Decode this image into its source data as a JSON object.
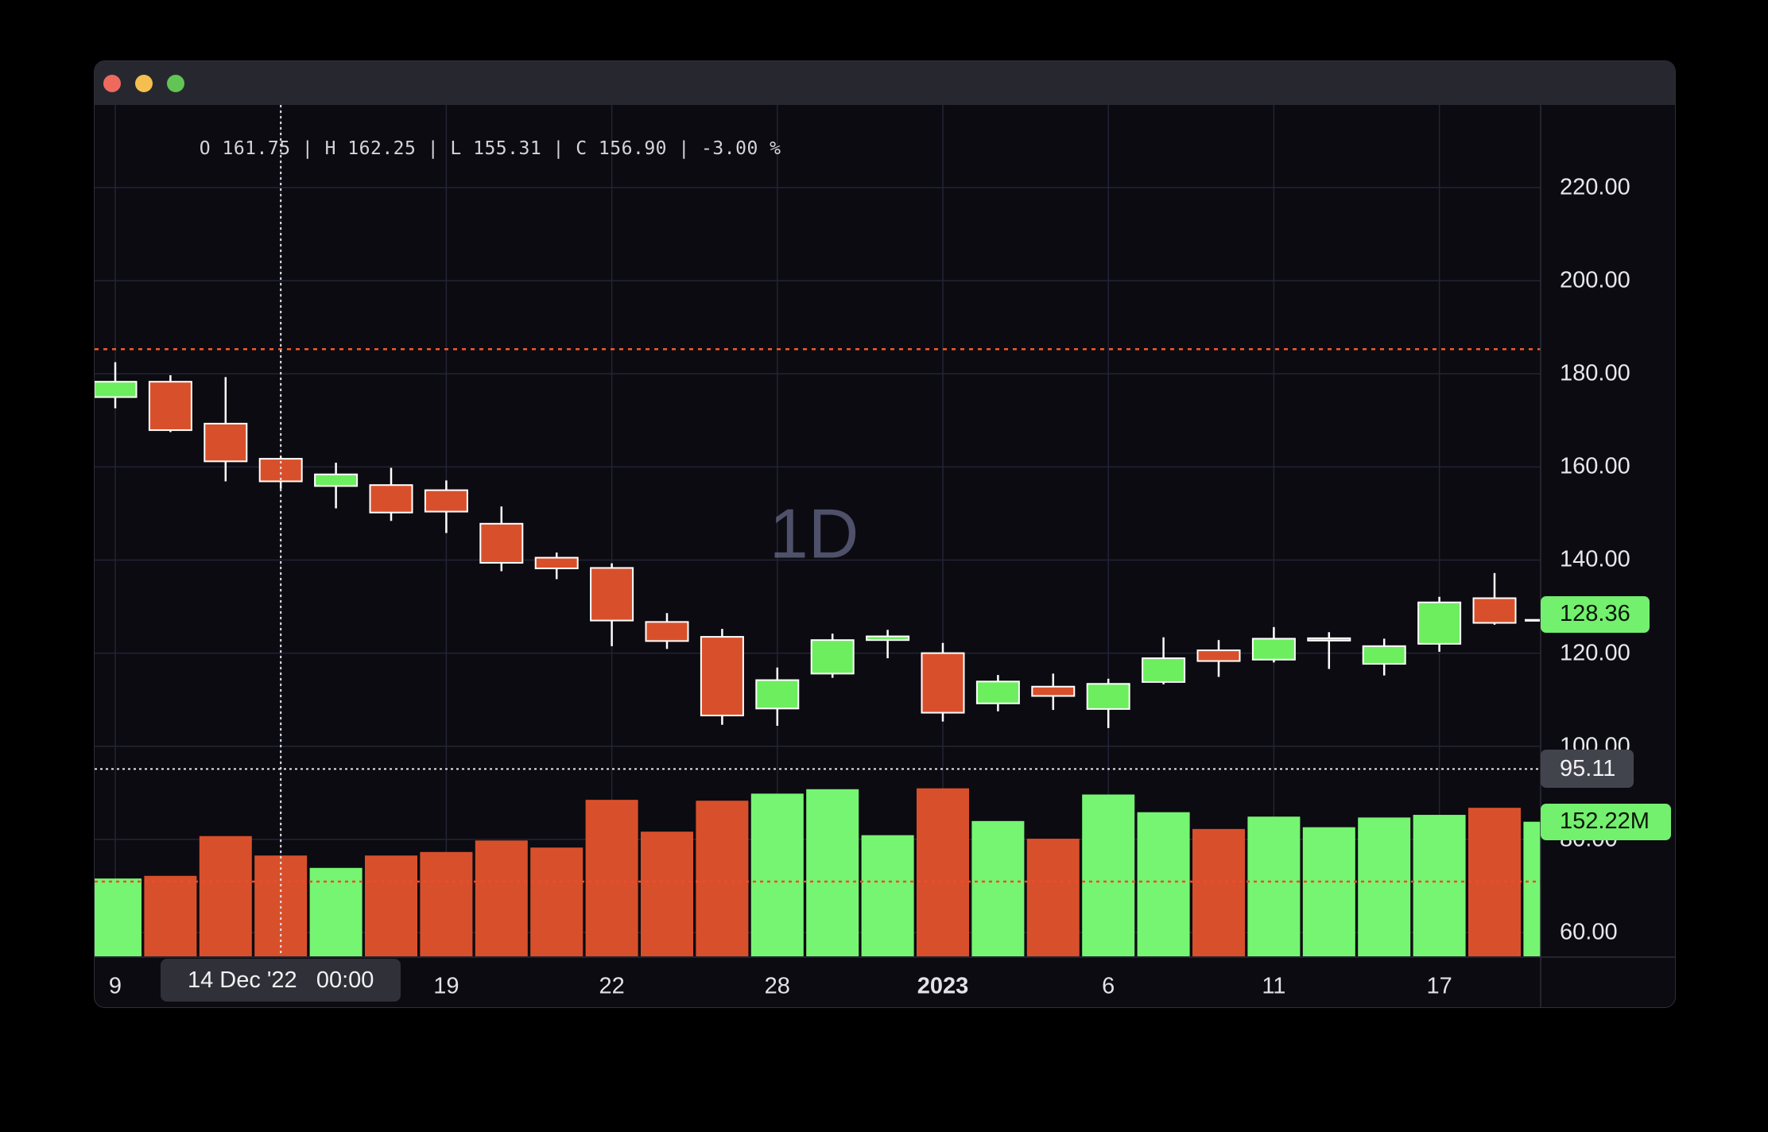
{
  "window": {
    "title": "",
    "traffic_lights": [
      {
        "name": "close",
        "color": "#ee6a5f"
      },
      {
        "name": "minimize",
        "color": "#f5bf4f"
      },
      {
        "name": "zoom",
        "color": "#62c454"
      }
    ]
  },
  "legend": {
    "text": "O 161.75 | H 162.25 | L 155.31 | C 156.90 | -3.00 %"
  },
  "watermark": {
    "text": "1D"
  },
  "colors": {
    "page_bg": "#000000",
    "window_bg": "#0c0b11",
    "titlebar_bg": "#27282f",
    "grid": "#222436",
    "axis_border": "#2b2d3a",
    "candle_up": "#6cee5f",
    "candle_down": "#d8502b",
    "volume_up": "#76f573",
    "volume_down": "#d8502b",
    "candle_outline": "#ffffff",
    "watermark": "#7d81a8",
    "level_line": "#f45a2e",
    "volume_avg_line": "#f04a30",
    "crosshair": "#e9e9ec",
    "badge_green_bg": "#72f06e",
    "badge_green_text": "#0c1607",
    "badge_gray_bg": "#42444d",
    "badge_gray_text": "#f1f1f3",
    "time_badge_bg": "#2f3038",
    "time_badge_text": "#f1f1f3",
    "axis_text": "#e7e8eb",
    "legend_text": "#d5d5d8"
  },
  "price_axis": {
    "ticks": [
      "220.00",
      "200.00",
      "180.00",
      "160.00",
      "140.00",
      "120.00",
      "100.00",
      "80.00",
      "60.00"
    ],
    "last_price_badge": {
      "text": "128.36",
      "price": 128.36
    },
    "crosshair_badge": {
      "text": "95.11",
      "price": 95.11
    },
    "volume_badge": {
      "text": "152.22M",
      "volume_m": 152.22
    }
  },
  "time_axis": {
    "ticks": [
      {
        "label": "9",
        "slot": 0,
        "bold": false
      },
      {
        "label": "19",
        "slot": 6,
        "bold": false
      },
      {
        "label": "22",
        "slot": 9,
        "bold": false
      },
      {
        "label": "28",
        "slot": 12,
        "bold": false
      },
      {
        "label": "2023",
        "slot": 15,
        "bold": true
      },
      {
        "label": "6",
        "slot": 18,
        "bold": false
      },
      {
        "label": "11",
        "slot": 21,
        "bold": false
      },
      {
        "label": "17",
        "slot": 24,
        "bold": false
      }
    ],
    "crosshair_badge": {
      "date": "14 Dec '22",
      "time": "00:00",
      "slot": 3
    }
  },
  "chart_data": {
    "type": "candlestick+volume",
    "interval": "1D",
    "grid": true,
    "price_ticks": [
      220,
      200,
      180,
      160,
      140,
      120,
      100,
      80,
      60
    ],
    "levels": {
      "orange_dashed_price": 185.3,
      "volume_avg_dashed_volume_m": 84.5,
      "crosshair_price": 95.11,
      "crosshair_slot": 3,
      "last_price": 128.36,
      "last_open_tick_price": 127.05
    },
    "candles": [
      {
        "date": "9 Dec '22",
        "o": 175.0,
        "h": 182.5,
        "l": 172.6,
        "c": 178.3,
        "v": 88
      },
      {
        "date": "12 Dec '22",
        "o": 178.3,
        "h": 179.7,
        "l": 167.5,
        "c": 167.9,
        "v": 91
      },
      {
        "date": "13 Dec '22",
        "o": 169.3,
        "h": 179.3,
        "l": 156.9,
        "c": 161.2,
        "v": 136
      },
      {
        "date": "14 Dec '22",
        "o": 161.75,
        "h": 162.25,
        "l": 155.31,
        "c": 156.9,
        "v": 114
      },
      {
        "date": "15 Dec '22",
        "o": 155.9,
        "h": 160.9,
        "l": 151.1,
        "c": 158.4,
        "v": 100
      },
      {
        "date": "16 Dec '22",
        "o": 156.1,
        "h": 159.8,
        "l": 148.4,
        "c": 150.2,
        "v": 114
      },
      {
        "date": "19 Dec '22",
        "o": 155.0,
        "h": 157.1,
        "l": 145.8,
        "c": 150.4,
        "v": 118
      },
      {
        "date": "20 Dec '22",
        "o": 147.8,
        "h": 151.5,
        "l": 137.6,
        "c": 139.4,
        "v": 131
      },
      {
        "date": "21 Dec '22",
        "o": 140.5,
        "h": 141.6,
        "l": 135.9,
        "c": 138.2,
        "v": 123
      },
      {
        "date": "22 Dec '22",
        "o": 138.3,
        "h": 139.3,
        "l": 121.5,
        "c": 127.0,
        "v": 177
      },
      {
        "date": "23 Dec '22",
        "o": 126.7,
        "h": 128.6,
        "l": 120.9,
        "c": 122.6,
        "v": 141
      },
      {
        "date": "27 Dec '22",
        "o": 123.5,
        "h": 125.2,
        "l": 104.6,
        "c": 106.6,
        "v": 176
      },
      {
        "date": "28 Dec '22",
        "o": 108.1,
        "h": 116.9,
        "l": 104.4,
        "c": 114.2,
        "v": 184
      },
      {
        "date": "29 Dec '22",
        "o": 115.6,
        "h": 124.2,
        "l": 114.7,
        "c": 122.8,
        "v": 189
      },
      {
        "date": "30 Dec '22",
        "o": 122.8,
        "h": 125.0,
        "l": 118.9,
        "c": 123.6,
        "v": 137
      },
      {
        "date": "3 Jan '23",
        "o": 120.0,
        "h": 122.2,
        "l": 105.3,
        "c": 107.2,
        "v": 190
      },
      {
        "date": "4 Jan '23",
        "o": 109.2,
        "h": 115.3,
        "l": 107.5,
        "c": 113.9,
        "v": 153
      },
      {
        "date": "5 Jan '23",
        "o": 112.8,
        "h": 115.6,
        "l": 107.8,
        "c": 110.8,
        "v": 133
      },
      {
        "date": "6 Jan '23",
        "o": 108.0,
        "h": 114.5,
        "l": 103.9,
        "c": 113.4,
        "v": 183
      },
      {
        "date": "9 Jan '23",
        "o": 113.8,
        "h": 123.4,
        "l": 113.3,
        "c": 118.9,
        "v": 163
      },
      {
        "date": "10 Jan '23",
        "o": 120.6,
        "h": 122.8,
        "l": 114.9,
        "c": 118.3,
        "v": 144
      },
      {
        "date": "11 Jan '23",
        "o": 118.6,
        "h": 125.6,
        "l": 118.0,
        "c": 123.1,
        "v": 158
      },
      {
        "date": "12 Jan '23",
        "o": 123.0,
        "h": 124.5,
        "l": 116.6,
        "c": 123.2,
        "v": 146
      },
      {
        "date": "13 Jan '23",
        "o": 117.7,
        "h": 123.1,
        "l": 115.2,
        "c": 121.5,
        "v": 157
      },
      {
        "date": "17 Jan '23",
        "o": 122.0,
        "h": 132.1,
        "l": 120.3,
        "c": 130.9,
        "v": 160
      },
      {
        "date": "18 Jan '23",
        "o": 131.8,
        "h": 137.2,
        "l": 126.1,
        "c": 126.5,
        "v": 168
      },
      {
        "date": "19 Jan '23",
        "o": 127.05,
        "h": 128.4,
        "l": 126.5,
        "c": 128.36,
        "v": 152.22,
        "partially_hidden": true
      }
    ]
  }
}
